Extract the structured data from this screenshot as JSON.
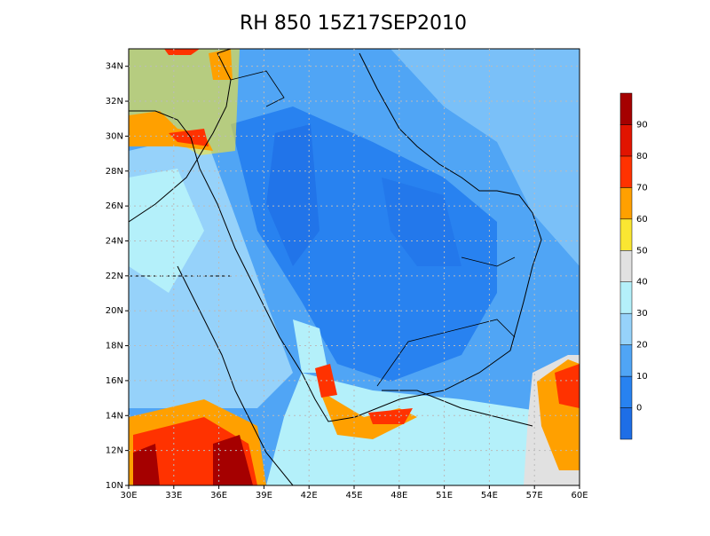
{
  "title": "RH 850 15Z17SEP2010",
  "map": {
    "lon_labels": [
      "30E",
      "33E",
      "36E",
      "39E",
      "42E",
      "45E",
      "48E",
      "51E",
      "54E",
      "57E",
      "60E"
    ],
    "lat_labels": [
      "10N",
      "12N",
      "14N",
      "16N",
      "18N",
      "20N",
      "22N",
      "24N",
      "26N",
      "28N",
      "30N",
      "32N",
      "34N"
    ]
  },
  "colorbar": {
    "levels": [
      0,
      10,
      20,
      30,
      40,
      50,
      60,
      70,
      80,
      90
    ],
    "colors": [
      "#1e6ee6",
      "#2882f0",
      "#50a5f5",
      "#96d2fa",
      "#b4f0fa",
      "#e1e1e1",
      "#fae632",
      "#ffa000",
      "#ff3200",
      "#e11400",
      "#a50000"
    ]
  }
}
